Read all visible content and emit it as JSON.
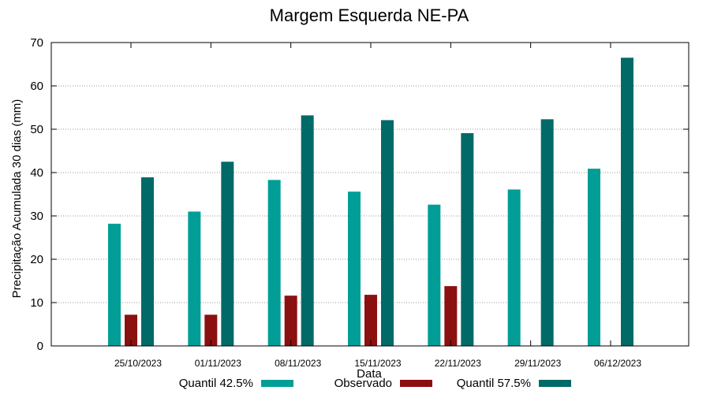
{
  "chart_data": {
    "type": "bar",
    "title": "Margem Esquerda NE-PA",
    "xlabel": "Data",
    "ylabel": "Precipitação Acumulada 30 dias (mm)",
    "ylim": [
      0,
      70
    ],
    "yticks": [
      0,
      10,
      20,
      30,
      40,
      50,
      60,
      70
    ],
    "grid": true,
    "legend_position": "bottom",
    "categories": [
      "25/10/2023",
      "01/11/2023",
      "08/11/2023",
      "15/11/2023",
      "22/11/2023",
      "29/11/2023",
      "06/12/2023"
    ],
    "series": [
      {
        "name": "Quantil 42.5%",
        "color": "#009e96",
        "values": [
          28.2,
          31.0,
          38.3,
          35.6,
          32.6,
          36.1,
          40.9
        ]
      },
      {
        "name": "Observado",
        "color": "#8b1010",
        "values": [
          7.2,
          7.2,
          11.6,
          11.8,
          13.8,
          null,
          null
        ]
      },
      {
        "name": "Quantil 57.5%",
        "color": "#006a68",
        "values": [
          38.9,
          42.5,
          53.2,
          52.1,
          49.1,
          52.3,
          66.5
        ]
      }
    ]
  }
}
